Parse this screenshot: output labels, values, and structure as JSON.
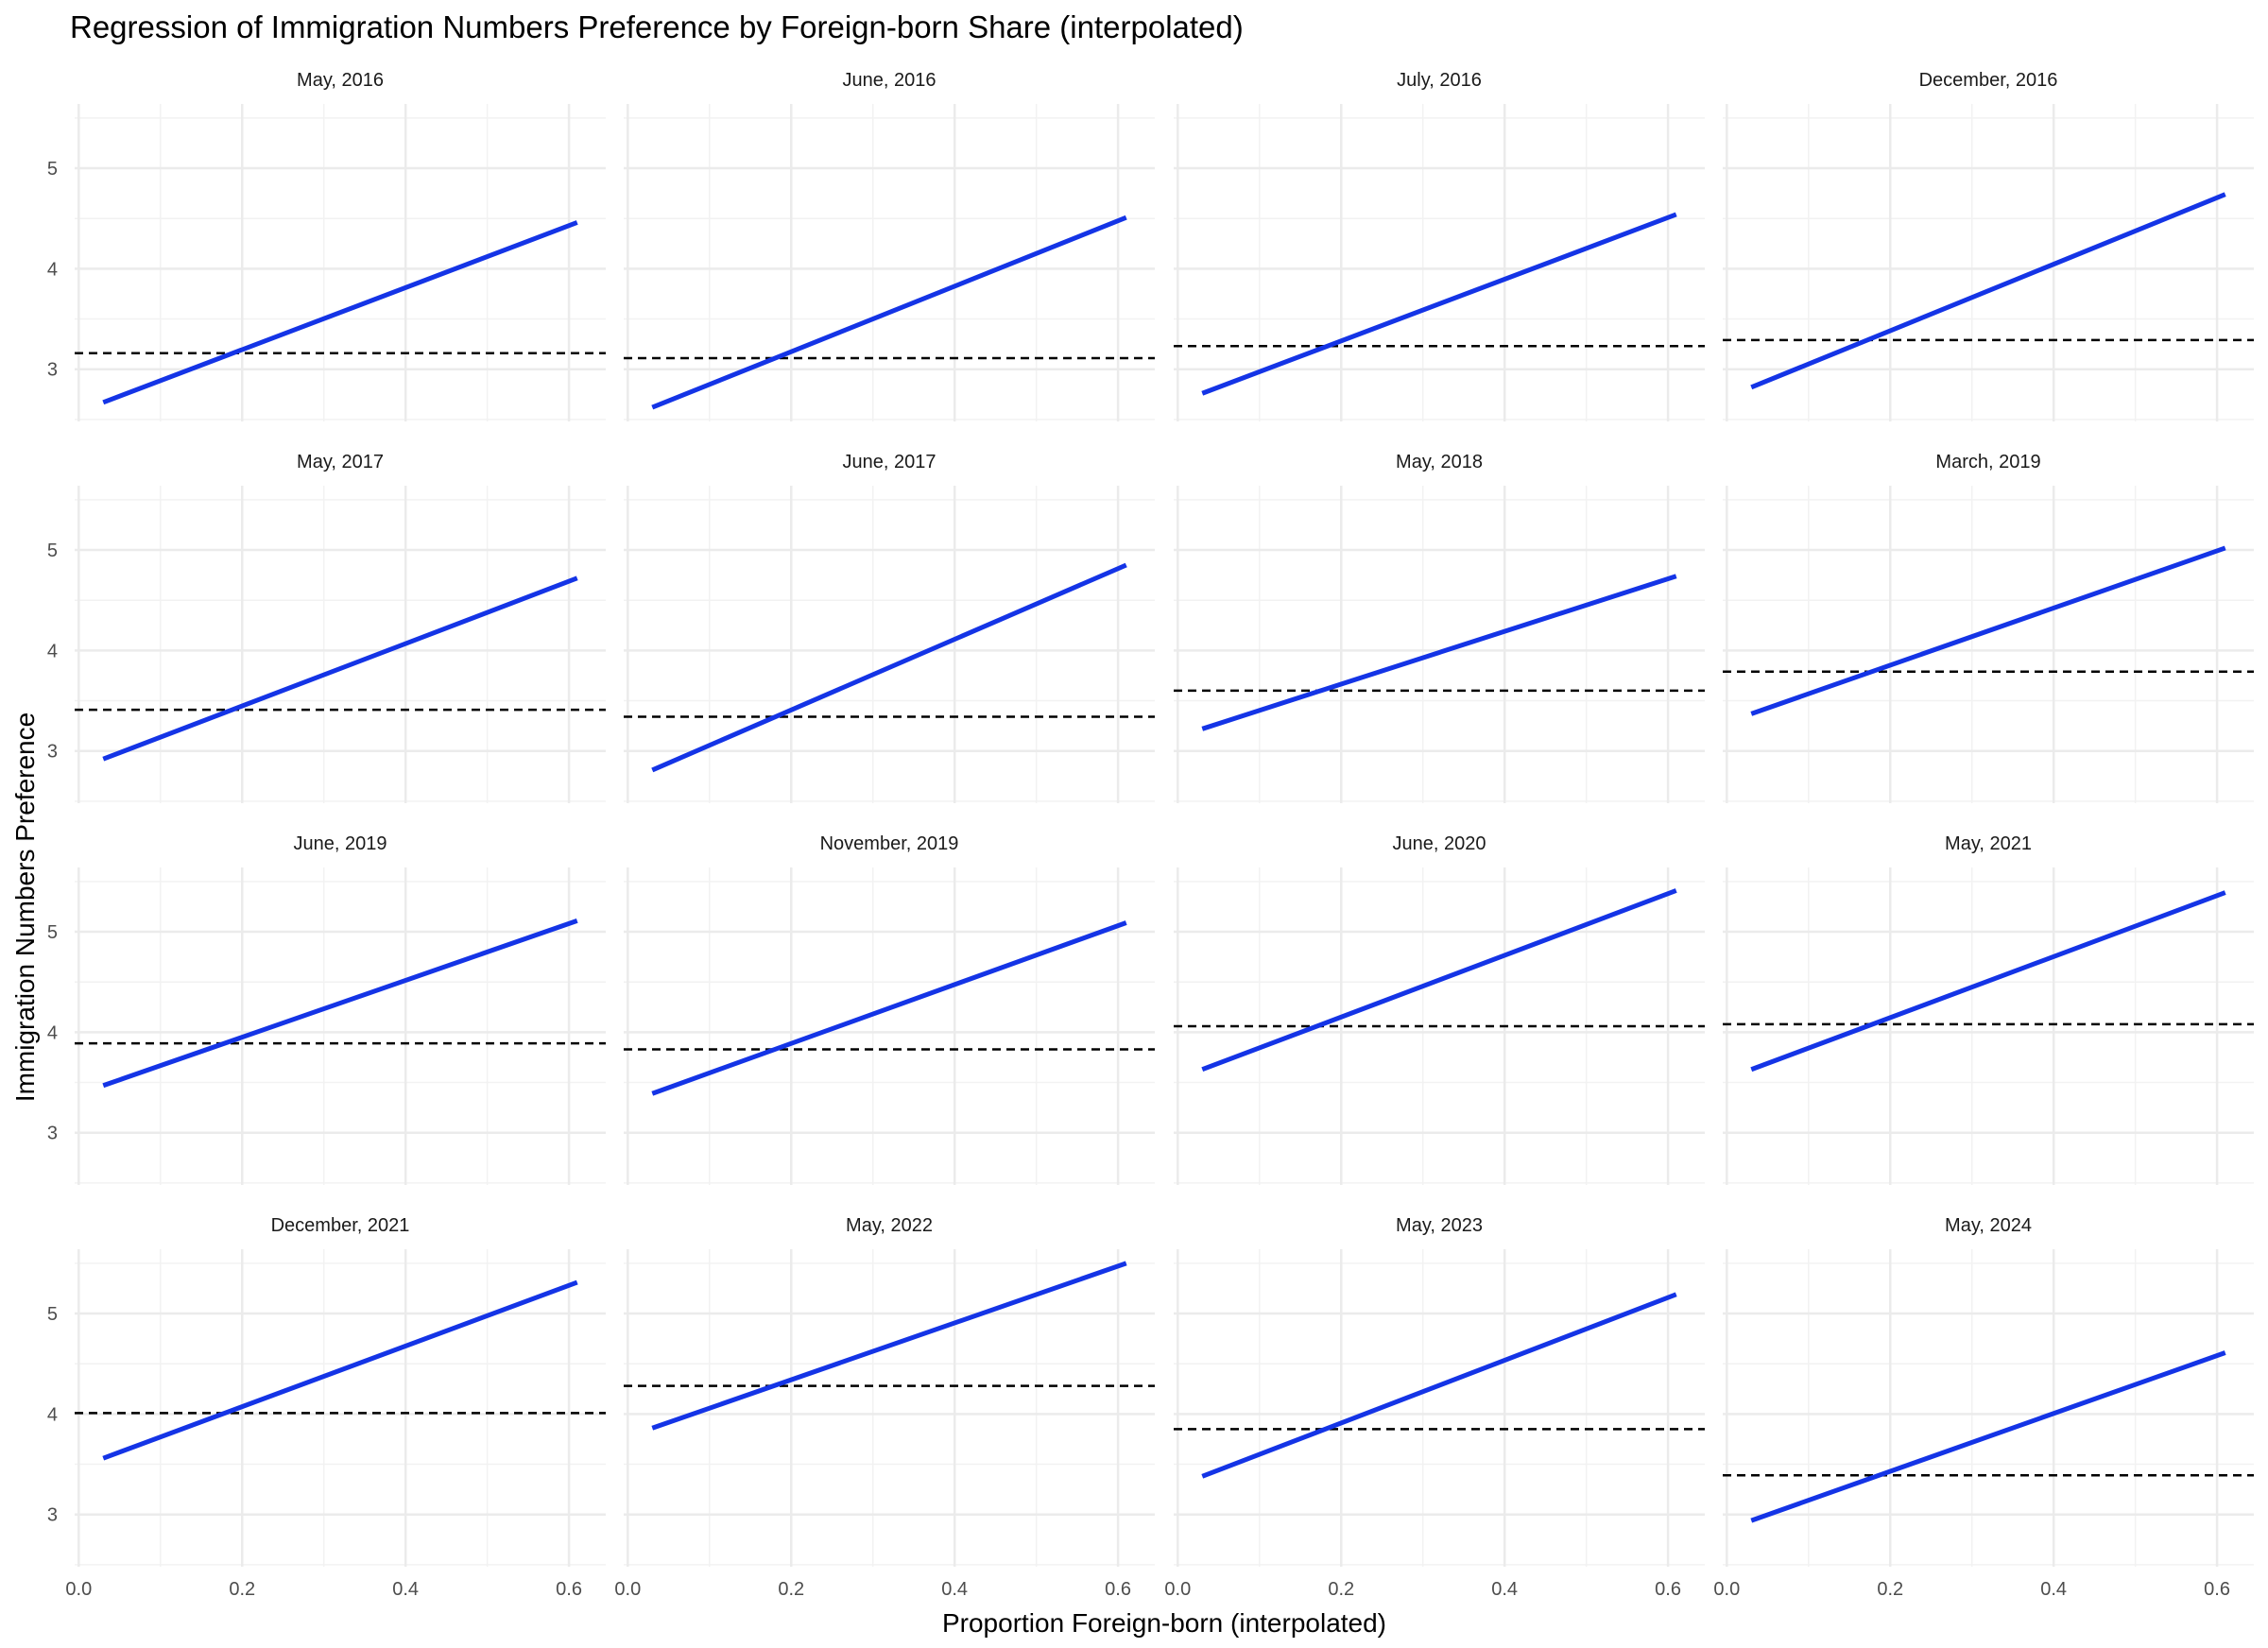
{
  "chart_data": {
    "type": "line",
    "title": "Regression of Immigration Numbers Preference by Foreign-born Share (interpolated)",
    "xlabel": "Proportion Foreign-born (interpolated)",
    "ylabel": "Immigration Numbers Preference",
    "xlim": [
      -0.005,
      0.645
    ],
    "ylim": [
      2.48,
      5.64
    ],
    "x_ticks": [
      "0.0",
      "0.2",
      "0.4",
      "0.6"
    ],
    "y_ticks": [
      "3",
      "4",
      "5"
    ],
    "grid": true,
    "legend": "none",
    "colors": {
      "regression_line": "#1434e6",
      "mean_line": "#000000",
      "grid": "#ebebeb"
    },
    "series": [
      {
        "title": "May, 2016",
        "x0": 0.03,
        "y0": 2.67,
        "x1": 0.61,
        "y1": 4.46,
        "mean": 3.16
      },
      {
        "title": "June, 2016",
        "x0": 0.03,
        "y0": 2.62,
        "x1": 0.61,
        "y1": 4.51,
        "mean": 3.11
      },
      {
        "title": "July, 2016",
        "x0": 0.03,
        "y0": 2.76,
        "x1": 0.61,
        "y1": 4.54,
        "mean": 3.23
      },
      {
        "title": "December, 2016",
        "x0": 0.03,
        "y0": 2.82,
        "x1": 0.61,
        "y1": 4.74,
        "mean": 3.29
      },
      {
        "title": "May, 2017",
        "x0": 0.03,
        "y0": 2.92,
        "x1": 0.61,
        "y1": 4.72,
        "mean": 3.41
      },
      {
        "title": "June, 2017",
        "x0": 0.03,
        "y0": 2.81,
        "x1": 0.61,
        "y1": 4.85,
        "mean": 3.34
      },
      {
        "title": "May, 2018",
        "x0": 0.03,
        "y0": 3.22,
        "x1": 0.61,
        "y1": 4.74,
        "mean": 3.6
      },
      {
        "title": "March, 2019",
        "x0": 0.03,
        "y0": 3.37,
        "x1": 0.61,
        "y1": 5.02,
        "mean": 3.79
      },
      {
        "title": "June, 2019",
        "x0": 0.03,
        "y0": 3.47,
        "x1": 0.61,
        "y1": 5.11,
        "mean": 3.89
      },
      {
        "title": "November, 2019",
        "x0": 0.03,
        "y0": 3.39,
        "x1": 0.61,
        "y1": 5.09,
        "mean": 3.83
      },
      {
        "title": "June, 2020",
        "x0": 0.03,
        "y0": 3.63,
        "x1": 0.61,
        "y1": 5.41,
        "mean": 4.06
      },
      {
        "title": "May, 2021",
        "x0": 0.03,
        "y0": 3.63,
        "x1": 0.61,
        "y1": 5.39,
        "mean": 4.08
      },
      {
        "title": "December, 2021",
        "x0": 0.03,
        "y0": 3.56,
        "x1": 0.61,
        "y1": 5.31,
        "mean": 4.01
      },
      {
        "title": "May, 2022",
        "x0": 0.03,
        "y0": 3.86,
        "x1": 0.61,
        "y1": 5.5,
        "mean": 4.28
      },
      {
        "title": "May, 2023",
        "x0": 0.03,
        "y0": 3.38,
        "x1": 0.61,
        "y1": 5.19,
        "mean": 3.85
      },
      {
        "title": "May, 2024",
        "x0": 0.03,
        "y0": 2.94,
        "x1": 0.61,
        "y1": 4.61,
        "mean": 3.39
      }
    ]
  }
}
